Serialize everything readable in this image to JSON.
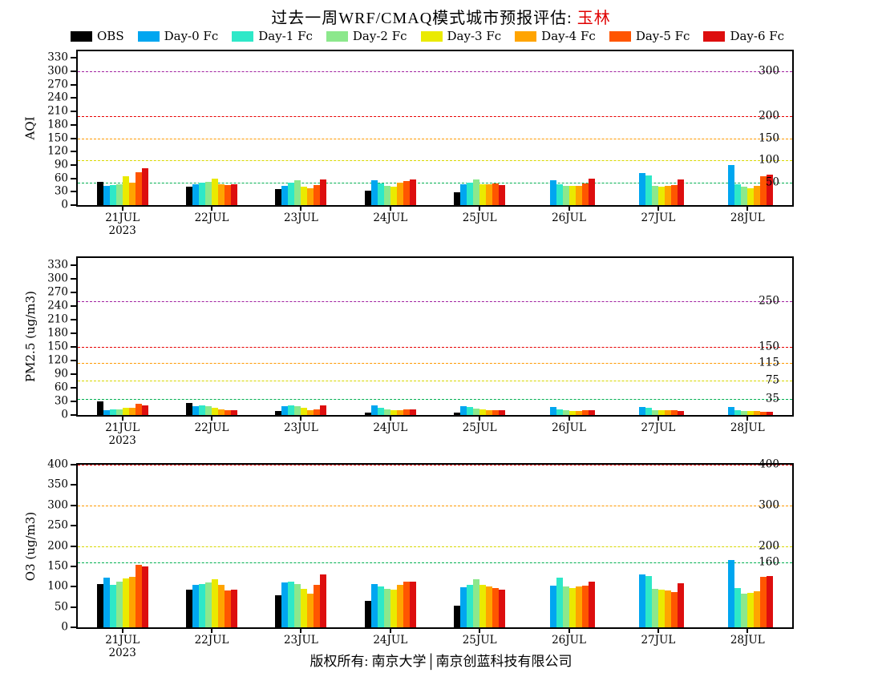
{
  "title": {
    "prefix": "过去一周WRF/CMAQ模式城市预报评估: ",
    "city": "玉林"
  },
  "legend": {
    "items": [
      {
        "label": "OBS",
        "color": "#000000"
      },
      {
        "label": "Day-0 Fc",
        "color": "#00a6f0"
      },
      {
        "label": "Day-1 Fc",
        "color": "#2ee8c8"
      },
      {
        "label": "Day-2 Fc",
        "color": "#8ce88c"
      },
      {
        "label": "Day-3 Fc",
        "color": "#eaea00"
      },
      {
        "label": "Day-4 Fc",
        "color": "#ffa400"
      },
      {
        "label": "Day-5 Fc",
        "color": "#ff5500"
      },
      {
        "label": "Day-6 Fc",
        "color": "#dd0e0e"
      }
    ]
  },
  "footer": {
    "text": "版权所有: 南京大学│南京创蓝科技有限公司"
  },
  "chart_data": [
    {
      "type": "bar",
      "ylabel": "AQI",
      "ylim": [
        0,
        345
      ],
      "yticks": [
        0,
        30,
        60,
        90,
        120,
        150,
        180,
        210,
        240,
        270,
        300,
        330
      ],
      "categories": [
        "21JUL",
        "22JUL",
        "23JUL",
        "24JUL",
        "25JUL",
        "26JUL",
        "27JUL",
        "28JUL"
      ],
      "year_label": "2023",
      "grid": false,
      "legend_position": "top",
      "reference_lines": [
        {
          "value": 50,
          "color": "#00b050",
          "label": "50"
        },
        {
          "value": 100,
          "color": "#d8d800",
          "label": "100"
        },
        {
          "value": 150,
          "color": "#ff9900",
          "label": "150"
        },
        {
          "value": 200,
          "color": "#e80000",
          "label": "200"
        },
        {
          "value": 300,
          "color": "#a020a0",
          "label": "300"
        }
      ],
      "series": [
        {
          "name": "OBS",
          "values": [
            52,
            42,
            36,
            33,
            28,
            0,
            0,
            0
          ]
        },
        {
          "name": "Day-0 Fc",
          "values": [
            44,
            47,
            44,
            55,
            47,
            55,
            72,
            90
          ]
        },
        {
          "name": "Day-1 Fc",
          "values": [
            45,
            50,
            50,
            48,
            50,
            47,
            67,
            47
          ]
        },
        {
          "name": "Day-2 Fc",
          "values": [
            47,
            52,
            55,
            44,
            58,
            44,
            44,
            42
          ]
        },
        {
          "name": "Day-3 Fc",
          "values": [
            65,
            60,
            42,
            42,
            47,
            44,
            41,
            38
          ]
        },
        {
          "name": "Day-4 Fc",
          "values": [
            50,
            47,
            37,
            50,
            47,
            44,
            44,
            44
          ]
        },
        {
          "name": "Day-5 Fc",
          "values": [
            73,
            45,
            45,
            54,
            48,
            48,
            45,
            64
          ]
        },
        {
          "name": "Day-6 Fc",
          "values": [
            82,
            46,
            57,
            58,
            45,
            60,
            58,
            68
          ]
        }
      ]
    },
    {
      "type": "bar",
      "ylabel": "PM2.5 (ug/m3)",
      "ylim": [
        0,
        345
      ],
      "yticks": [
        0,
        30,
        60,
        90,
        120,
        150,
        180,
        210,
        240,
        270,
        300,
        330
      ],
      "categories": [
        "21JUL",
        "22JUL",
        "23JUL",
        "24JUL",
        "25JUL",
        "26JUL",
        "27JUL",
        "28JUL"
      ],
      "year_label": "2023",
      "grid": false,
      "legend_position": "top",
      "reference_lines": [
        {
          "value": 35,
          "color": "#00b050",
          "label": "35"
        },
        {
          "value": 75,
          "color": "#d8d800",
          "label": "75"
        },
        {
          "value": 115,
          "color": "#ff9900",
          "label": "115"
        },
        {
          "value": 150,
          "color": "#e80000",
          "label": "150"
        },
        {
          "value": 250,
          "color": "#a020a0",
          "label": "250"
        }
      ],
      "series": [
        {
          "name": "OBS",
          "values": [
            30,
            27,
            8,
            5,
            6,
            0,
            0,
            0
          ]
        },
        {
          "name": "Day-0 Fc",
          "values": [
            11,
            20,
            20,
            22,
            20,
            17,
            18,
            17
          ]
        },
        {
          "name": "Day-1 Fc",
          "values": [
            12,
            22,
            22,
            15,
            18,
            12,
            15,
            10
          ]
        },
        {
          "name": "Day-2 Fc",
          "values": [
            13,
            20,
            19,
            12,
            14,
            10,
            10,
            8
          ]
        },
        {
          "name": "Day-3 Fc",
          "values": [
            15,
            15,
            15,
            10,
            12,
            8,
            10,
            8
          ]
        },
        {
          "name": "Day-4 Fc",
          "values": [
            16,
            12,
            10,
            10,
            10,
            8,
            10,
            8
          ]
        },
        {
          "name": "Day-5 Fc",
          "values": [
            24,
            10,
            12,
            12,
            10,
            10,
            10,
            7
          ]
        },
        {
          "name": "Day-6 Fc",
          "values": [
            22,
            10,
            21,
            12,
            10,
            10,
            8,
            7
          ]
        }
      ]
    },
    {
      "type": "bar",
      "ylabel": "O3 (ug/m3)",
      "ylim": [
        0,
        400
      ],
      "yticks": [
        0,
        50,
        100,
        150,
        200,
        250,
        300,
        350,
        400
      ],
      "categories": [
        "21JUL",
        "22JUL",
        "23JUL",
        "24JUL",
        "25JUL",
        "26JUL",
        "27JUL",
        "28JUL"
      ],
      "year_label": "2023",
      "grid": false,
      "legend_position": "top",
      "reference_lines": [
        {
          "value": 160,
          "color": "#00b050",
          "label": "160"
        },
        {
          "value": 200,
          "color": "#d8d800",
          "label": "200"
        },
        {
          "value": 300,
          "color": "#ff9900",
          "label": "300"
        },
        {
          "value": 400,
          "color": "#e80000",
          "label": "400"
        }
      ],
      "series": [
        {
          "name": "OBS",
          "values": [
            107,
            93,
            78,
            65,
            53,
            0,
            0,
            0
          ]
        },
        {
          "name": "Day-0 Fc",
          "values": [
            122,
            104,
            110,
            107,
            98,
            102,
            130,
            165
          ]
        },
        {
          "name": "Day-1 Fc",
          "values": [
            104,
            107,
            112,
            100,
            104,
            122,
            127,
            97
          ]
        },
        {
          "name": "Day-2 Fc",
          "values": [
            112,
            110,
            107,
            95,
            118,
            100,
            95,
            82
          ]
        },
        {
          "name": "Day-3 Fc",
          "values": [
            120,
            118,
            95,
            92,
            104,
            97,
            92,
            85
          ]
        },
        {
          "name": "Day-4 Fc",
          "values": [
            125,
            104,
            82,
            104,
            100,
            100,
            90,
            88
          ]
        },
        {
          "name": "Day-5 Fc",
          "values": [
            153,
            90,
            104,
            112,
            97,
            102,
            87,
            124
          ]
        },
        {
          "name": "Day-6 Fc",
          "values": [
            150,
            92,
            130,
            112,
            93,
            112,
            108,
            127
          ]
        }
      ]
    }
  ]
}
